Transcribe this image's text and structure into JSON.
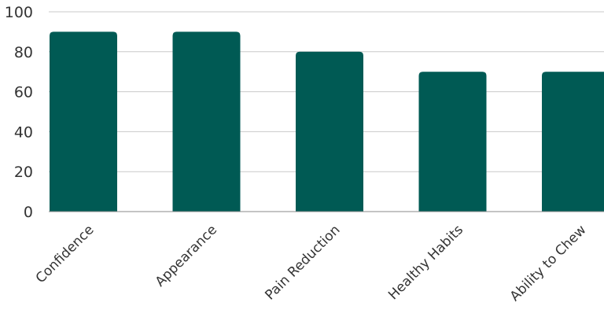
{
  "chart_data": {
    "type": "bar",
    "title": "",
    "xlabel": "",
    "ylabel": "",
    "categories": [
      "Confidence",
      "Appearance",
      "Pain Reduction",
      "Healthy Habits",
      "Ability to Chew"
    ],
    "values": [
      90,
      90,
      80,
      70,
      70
    ],
    "ylim": [
      0,
      100
    ],
    "yticks": [
      0,
      20,
      40,
      60,
      80,
      100
    ],
    "grid": true,
    "legend": "none",
    "bar_color": "#005a54"
  }
}
